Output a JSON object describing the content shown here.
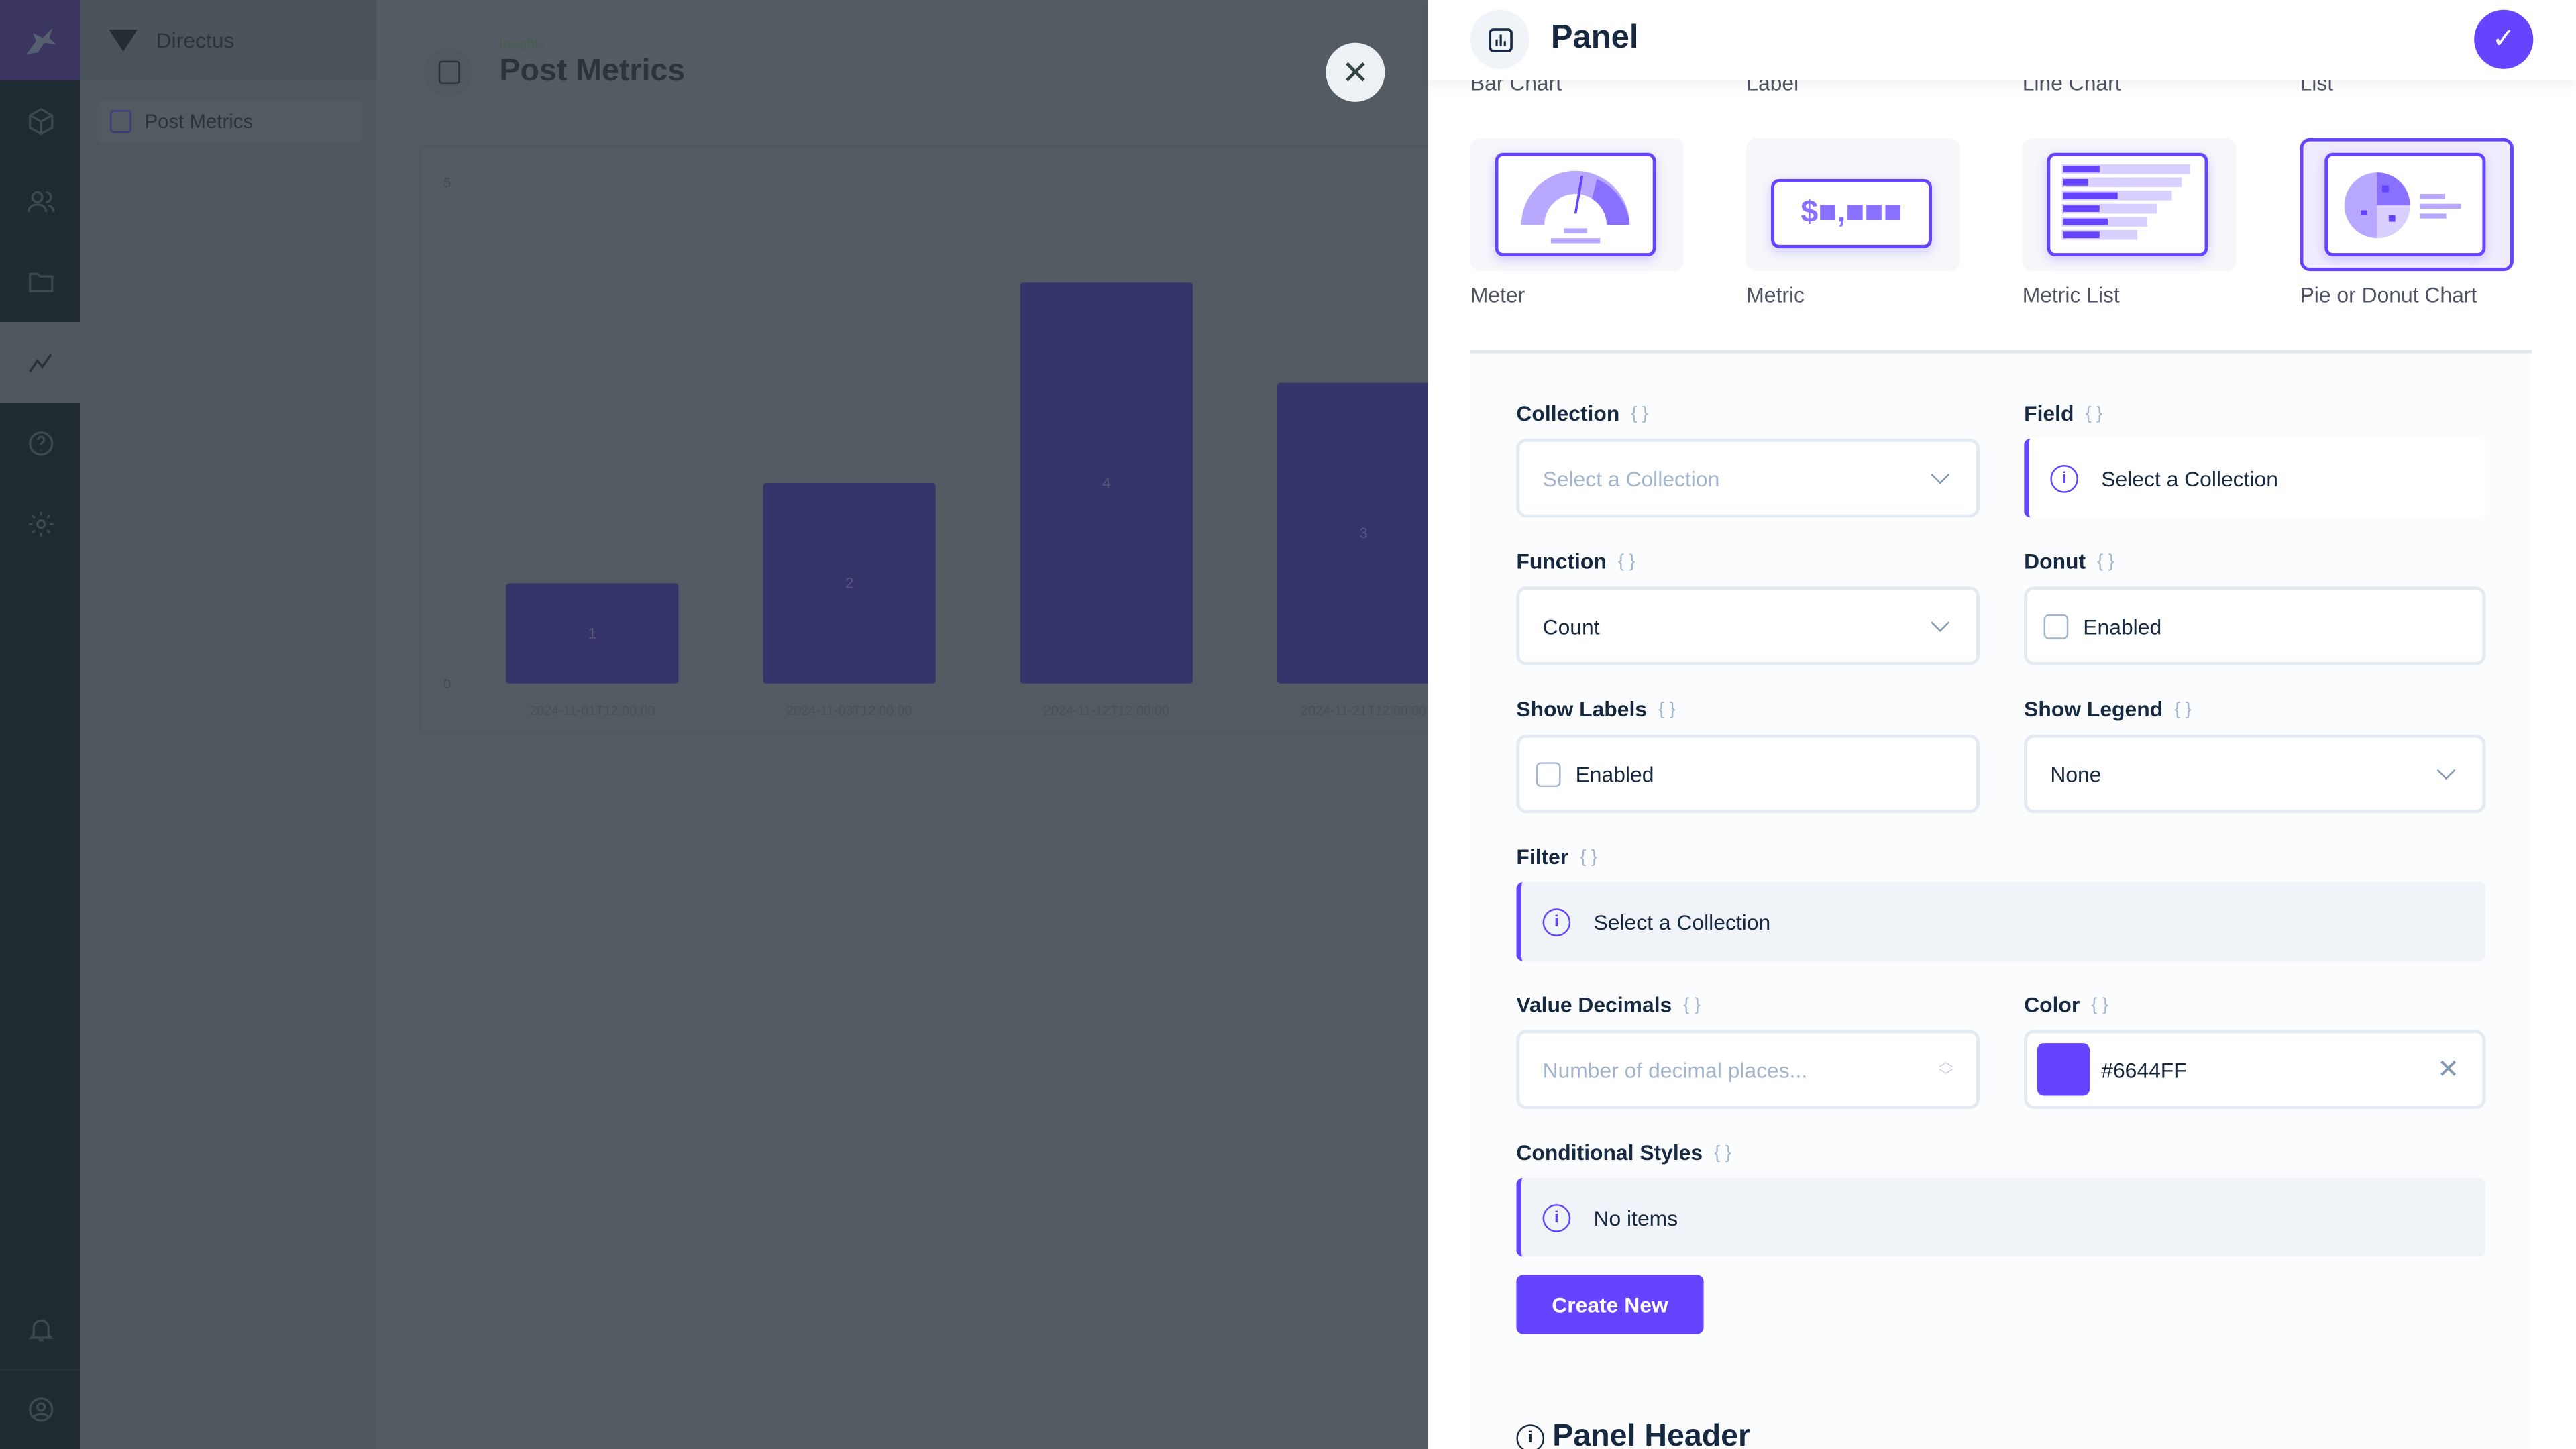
{
  "nav_rail": {
    "items": [
      "modules-icon",
      "users-icon",
      "files-icon",
      "insights-icon",
      "help-icon",
      "settings-icon",
      "notifications-icon",
      "user-icon"
    ]
  },
  "nav_pane": {
    "project": "Directus",
    "items": [
      {
        "label": "Post Metrics"
      }
    ]
  },
  "header": {
    "breadcrumb": "Insights",
    "title": "Post Metrics"
  },
  "chart_data": {
    "type": "bar",
    "categories": [
      "2024-11-01T12:00:00",
      "2024-11-03T12:00:00",
      "2024-11-12T12:00:00",
      "2024-11-21T12:00:00"
    ],
    "values": [
      1,
      2,
      4,
      3
    ],
    "ylim": [
      0,
      5
    ],
    "yticks": [
      "0",
      "5"
    ],
    "data_labels": true
  },
  "drawer": {
    "title": "Panel",
    "panel_types_top": [
      "Bar Chart",
      "Label",
      "Line Chart",
      "List"
    ],
    "panel_types": [
      {
        "label": "Meter"
      },
      {
        "label": "Metric"
      },
      {
        "label": "Metric List"
      },
      {
        "label": "Pie or Donut Chart",
        "selected": true
      }
    ],
    "metric_icon_text": "$■,■■■",
    "form": {
      "collection": {
        "label": "Collection",
        "placeholder": "Select a Collection"
      },
      "field": {
        "label": "Field",
        "notice": "Select a Collection"
      },
      "function": {
        "label": "Function",
        "value": "Count"
      },
      "donut": {
        "label": "Donut",
        "checkbox": "Enabled",
        "checked": false
      },
      "show_labels": {
        "label": "Show Labels",
        "checkbox": "Enabled",
        "checked": false
      },
      "show_legend": {
        "label": "Show Legend",
        "value": "None"
      },
      "filter": {
        "label": "Filter",
        "notice": "Select a Collection"
      },
      "value_decimals": {
        "label": "Value Decimals",
        "placeholder": "Number of decimal places..."
      },
      "color": {
        "label": "Color",
        "value": "#6644FF"
      },
      "conditional_styles": {
        "label": "Conditional Styles",
        "notice": "No items",
        "button": "Create New"
      },
      "panel_header": "Panel Header"
    },
    "accent": "#6644FF"
  }
}
